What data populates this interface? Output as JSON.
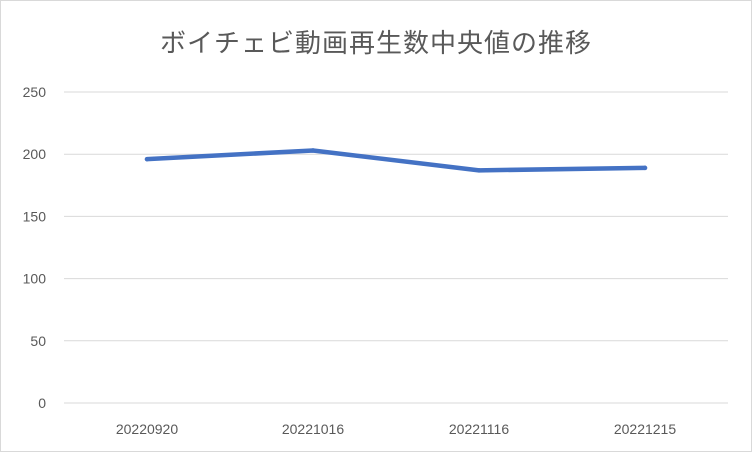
{
  "chart_data": {
    "type": "line",
    "title": "ボイチェビ動画再生数中央値の推移",
    "xlabel": "",
    "ylabel": "",
    "categories": [
      "20220920",
      "20221016",
      "20221116",
      "20221215"
    ],
    "series": [
      {
        "values": [
          196,
          203,
          187,
          189
        ]
      }
    ],
    "ylim": [
      0,
      250
    ],
    "yticks": [
      "0",
      "50",
      "100",
      "150",
      "200",
      "250"
    ],
    "grid": true,
    "legend": "none",
    "colors": {
      "line": "#4472c4",
      "grid": "#d9d9d9",
      "text": "#595959"
    }
  }
}
